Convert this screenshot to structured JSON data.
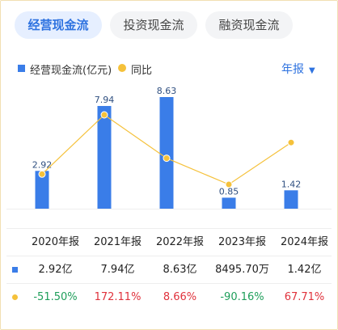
{
  "tabs": [
    {
      "label": "经营现金流",
      "active": true
    },
    {
      "label": "投资现金流",
      "active": false
    },
    {
      "label": "融资现金流",
      "active": false
    }
  ],
  "legend": {
    "bar_label": "经营现金流(亿元)",
    "line_label": "同比"
  },
  "period_selector": {
    "label": "年报"
  },
  "colors": {
    "bar": "#3a7de8",
    "line": "#f5c13a",
    "accent": "#2f73e0",
    "negative": "#1e9e5a",
    "positive": "#e0323c"
  },
  "chart_data": {
    "type": "bar",
    "categories": [
      "2020年报",
      "2021年报",
      "2022年报",
      "2023年报",
      "2024年报"
    ],
    "series": [
      {
        "name": "经营现金流(亿元)",
        "values": [
          2.92,
          7.94,
          8.63,
          0.85,
          1.42
        ],
        "data_labels": [
          "2.92",
          "7.94",
          "8.63",
          "0.85",
          "1.42"
        ]
      },
      {
        "name": "同比",
        "type": "line",
        "values": [
          -51.5,
          172.11,
          8.66,
          -90.16,
          67.71
        ],
        "unit": "%"
      }
    ]
  },
  "table": {
    "headers": [
      "2020年报",
      "2021年报",
      "2022年报",
      "2023年报",
      "2024年报"
    ],
    "value_row": [
      "2.92亿",
      "7.94亿",
      "8.63亿",
      "8495.70万",
      "1.42亿"
    ],
    "yoy_row": [
      "-51.50%",
      "172.11%",
      "8.66%",
      "-90.16%",
      "67.71%"
    ]
  }
}
